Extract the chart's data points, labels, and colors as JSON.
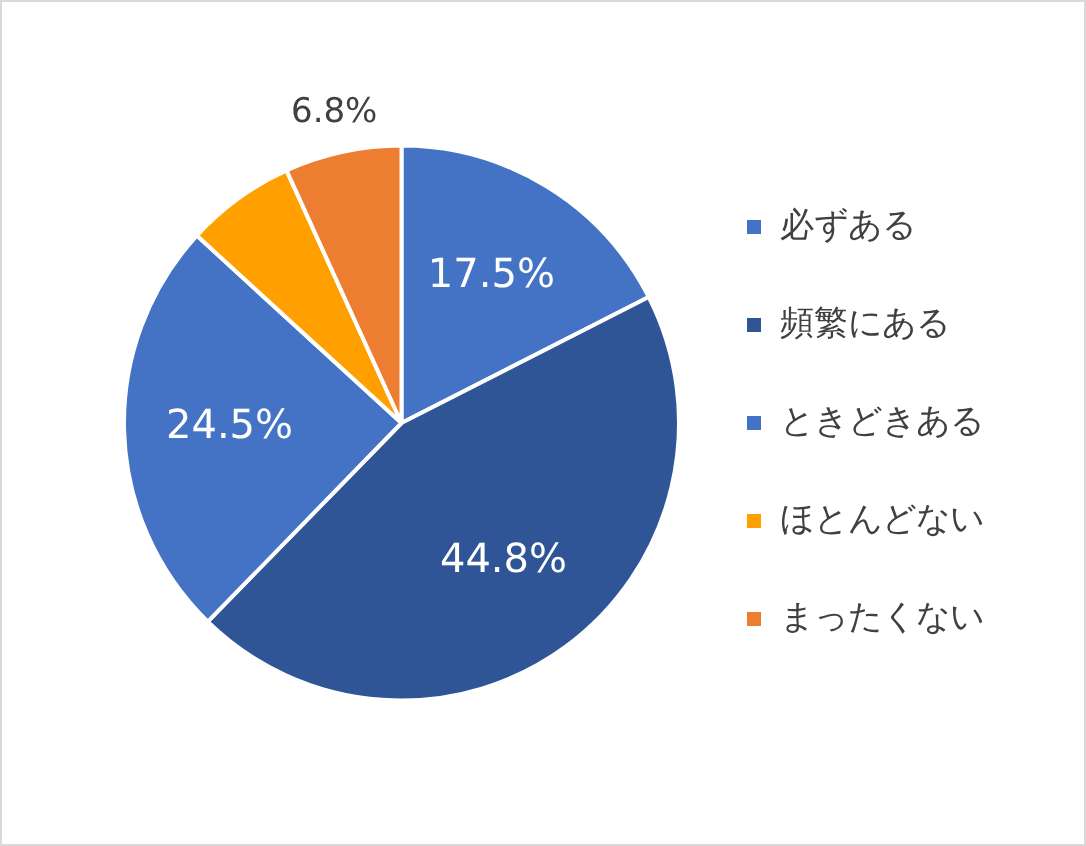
{
  "chart_data": {
    "type": "pie",
    "categories": [
      "必ずある",
      "頻繁にある",
      "ときどきある",
      "ほとんどない",
      "まったくない"
    ],
    "values": [
      17.5,
      44.8,
      24.5,
      6.4,
      6.8
    ],
    "colors": [
      "#4472c4",
      "#2f5597",
      "#4472c4",
      "#ffa000",
      "#ed7d31"
    ],
    "value_labels": [
      "17.5%",
      "44.8%",
      "24.5%",
      null,
      "6.8%"
    ],
    "legend": "right"
  }
}
